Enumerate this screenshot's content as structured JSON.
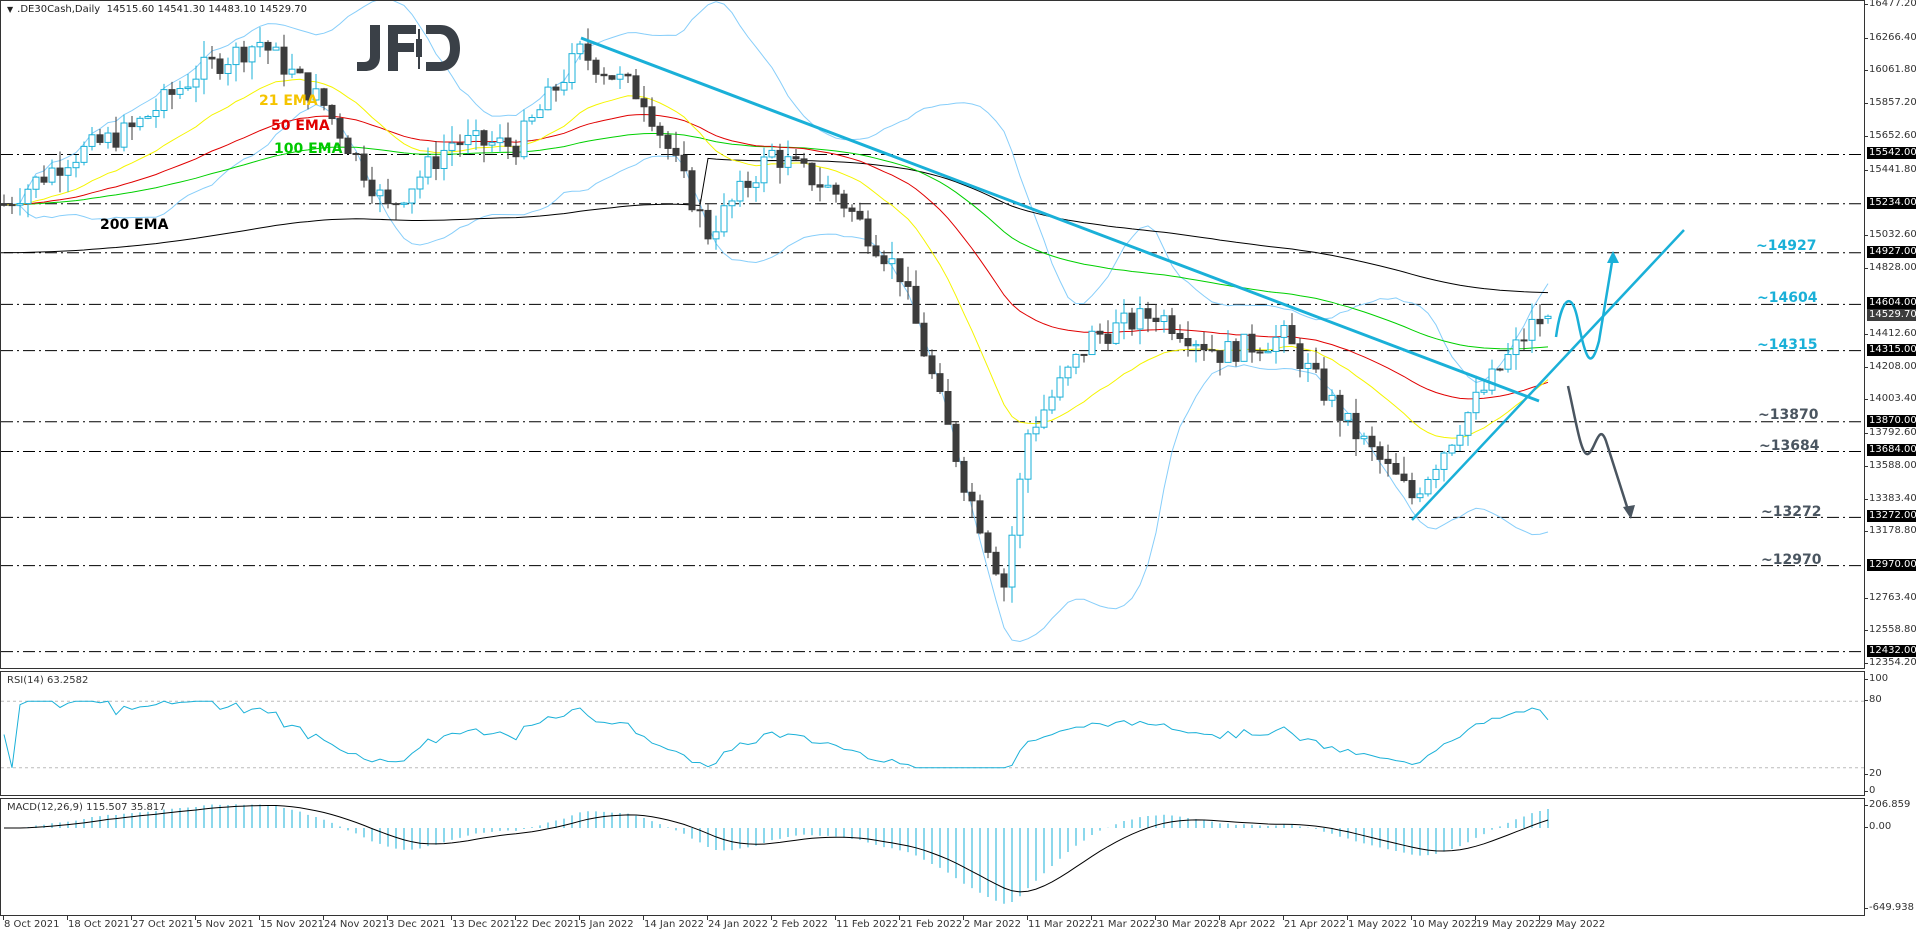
{
  "header": {
    "symbol": ".DE30Cash,Daily",
    "ohlc": "14515.60 14541.30 14483.10 14529.70",
    "menu_icon": "triangle-down-icon"
  },
  "logo": {
    "text": "JFD"
  },
  "ema_labels": [
    {
      "label": "21 EMA",
      "color": "#f5c400"
    },
    {
      "label": "50 EMA",
      "color": "#e00000"
    },
    {
      "label": "100 EMA",
      "color": "#00c800"
    },
    {
      "label": "200 EMA",
      "color": "#000000"
    }
  ],
  "level_labels": [
    {
      "label": "~14927",
      "color": "#1ab0d8"
    },
    {
      "label": "~14604",
      "color": "#1ab0d8"
    },
    {
      "label": "~14315",
      "color": "#1ab0d8"
    },
    {
      "label": "~13870",
      "color": "#4a5560"
    },
    {
      "label": "~13684",
      "color": "#4a5560"
    },
    {
      "label": "~13272",
      "color": "#4a5560"
    },
    {
      "label": "~12970",
      "color": "#4a5560"
    }
  ],
  "price_axis": {
    "ticks": [
      "16477.20",
      "16266.40",
      "16061.80",
      "15857.20",
      "15652.60",
      "15441.80",
      "15032.60",
      "14828.00",
      "14412.60",
      "14208.00",
      "14003.40",
      "13792.60",
      "13588.00",
      "13383.40",
      "13178.80",
      "12763.40",
      "12558.80",
      "12354.20"
    ],
    "tags": [
      "15542.00",
      "15234.00",
      "14927.00",
      "14604.00",
      "14315.00",
      "13870.00",
      "13684.00",
      "13272.00",
      "12970.00",
      "12432.00"
    ],
    "current": "14529.70"
  },
  "rsi": {
    "title": "RSI(14) 63.2582",
    "axis": [
      "100",
      "80",
      "20",
      "0"
    ]
  },
  "macd": {
    "title": "MACD(12,26,9) 115.507 35.817",
    "axis": [
      "206.859",
      "0.00",
      "-649.938"
    ]
  },
  "date_axis": [
    "8 Oct 2021",
    "18 Oct 2021",
    "27 Oct 2021",
    "5 Nov 2021",
    "15 Nov 2021",
    "24 Nov 2021",
    "3 Dec 2021",
    "13 Dec 2021",
    "22 Dec 2021",
    "5 Jan 2022",
    "14 Jan 2022",
    "24 Jan 2022",
    "2 Feb 2022",
    "11 Feb 2022",
    "21 Feb 2022",
    "2 Mar 2022",
    "11 Mar 2022",
    "21 Mar 2022",
    "30 Mar 2022",
    "8 Apr 2022",
    "21 Apr 2022",
    "1 May 2022",
    "10 May 2022",
    "19 May 2022",
    "29 May 2022"
  ],
  "chart_data": {
    "type": "candlestick",
    "title": ".DE30Cash,Daily",
    "symbol": ".DE30Cash",
    "timeframe": "Daily",
    "last_ohlc": {
      "open": 14515.6,
      "high": 14541.3,
      "low": 14483.1,
      "close": 14529.7
    },
    "ylim": [
      12354.2,
      16477.2
    ],
    "x_range": [
      "8 Oct 2021",
      "31 May 2022"
    ],
    "horizontal_levels": [
      15542.0,
      15234.0,
      14927.0,
      14604.0,
      14315.0,
      13870.0,
      13684.0,
      13272.0,
      12970.0,
      12432.0
    ],
    "annotated_levels": {
      "upside": [
        14927,
        14604,
        14315
      ],
      "downside": [
        13870,
        13684,
        13272,
        12970
      ]
    },
    "trendlines": [
      {
        "name": "downtrend",
        "from": {
          "date": "5 Jan 2022",
          "price": 16290
        },
        "to": {
          "date": "27 May 2022",
          "price": 14040
        }
      },
      {
        "name": "uptrend",
        "from": {
          "date": "12 May 2022",
          "price": 13272
        },
        "to": {
          "date": "projection",
          "price": 14880
        }
      }
    ],
    "approx_closes": [
      {
        "date": "8 Oct 2021",
        "close": 15230
      },
      {
        "date": "18 Oct 2021",
        "close": 15520
      },
      {
        "date": "27 Oct 2021",
        "close": 15700
      },
      {
        "date": "5 Nov 2021",
        "close": 16050
      },
      {
        "date": "15 Nov 2021",
        "close": 16250
      },
      {
        "date": "24 Nov 2021",
        "close": 15850
      },
      {
        "date": "3 Dec 2021",
        "close": 15200
      },
      {
        "date": "13 Dec 2021",
        "close": 15620
      },
      {
        "date": "22 Dec 2021",
        "close": 15600
      },
      {
        "date": "5 Jan 2022",
        "close": 16180
      },
      {
        "date": "14 Jan 2022",
        "close": 15900
      },
      {
        "date": "24 Jan 2022",
        "close": 15050
      },
      {
        "date": "2 Feb 2022",
        "close": 15550
      },
      {
        "date": "11 Feb 2022",
        "close": 15300
      },
      {
        "date": "21 Feb 2022",
        "close": 14800
      },
      {
        "date": "2 Mar 2022",
        "close": 13500
      },
      {
        "date": "8 Mar 2022",
        "close": 12850
      },
      {
        "date": "11 Mar 2022",
        "close": 13800
      },
      {
        "date": "21 Mar 2022",
        "close": 14400
      },
      {
        "date": "30 Mar 2022",
        "close": 14550
      },
      {
        "date": "8 Apr 2022",
        "close": 14300
      },
      {
        "date": "21 Apr 2022",
        "close": 14400
      },
      {
        "date": "1 May 2022",
        "close": 13850
      },
      {
        "date": "10 May 2022",
        "close": 13400
      },
      {
        "date": "19 May 2022",
        "close": 14000
      },
      {
        "date": "27 May 2022",
        "close": 14470
      },
      {
        "date": "31 May 2022",
        "close": 14529.7
      }
    ],
    "indicators": [
      {
        "name": "EMA 21",
        "color": "#f5f500"
      },
      {
        "name": "EMA 50",
        "color": "#e00000"
      },
      {
        "name": "EMA 100",
        "color": "#00d000"
      },
      {
        "name": "EMA 200",
        "color": "#000000"
      },
      {
        "name": "Bollinger Bands",
        "color": "#87cefa"
      },
      {
        "name": "RSI(14)",
        "value": 63.2582,
        "levels": [
          80,
          20
        ],
        "ylim": [
          0,
          100
        ]
      },
      {
        "name": "MACD(12,26,9)",
        "main": 115.507,
        "signal": 35.817,
        "ylim": [
          -649.938,
          206.859
        ]
      }
    ],
    "scenario_arrows": [
      {
        "direction": "up",
        "color": "#1ab0d8",
        "target": 14927
      },
      {
        "direction": "down",
        "color": "#4a5560",
        "target": 13272
      }
    ],
    "xlabel": "",
    "ylabel": "",
    "grid": false
  }
}
